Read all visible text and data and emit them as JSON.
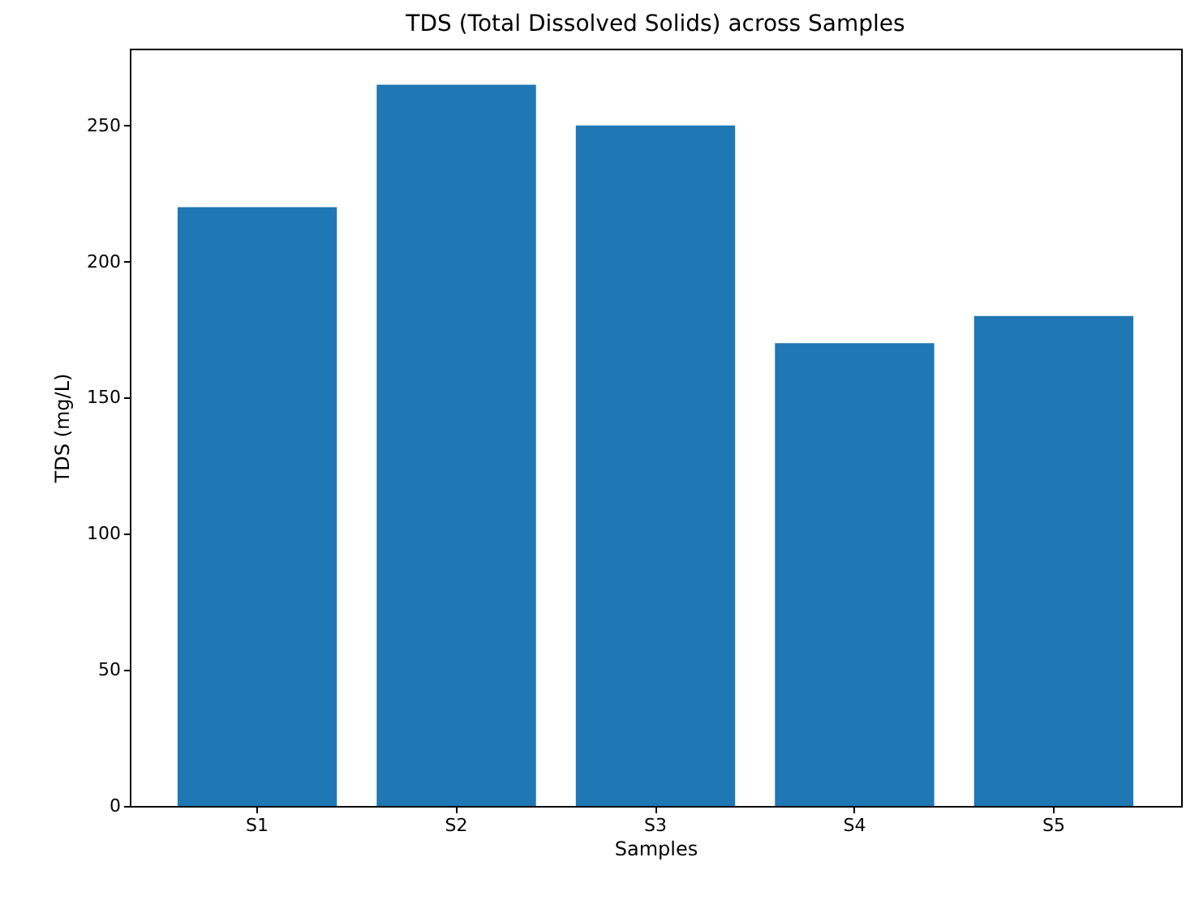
{
  "chart_data": {
    "type": "bar",
    "title": "TDS (Total Dissolved Solids) across Samples",
    "xlabel": "Samples",
    "ylabel": "TDS (mg/L)",
    "categories": [
      "S1",
      "S2",
      "S3",
      "S4",
      "S5"
    ],
    "values": [
      220,
      265,
      250,
      170,
      180
    ],
    "color": "#1f77b4",
    "ylim": [
      0,
      278.25
    ],
    "yticks": [
      0,
      50,
      100,
      150,
      200,
      250
    ],
    "grid": false
  }
}
